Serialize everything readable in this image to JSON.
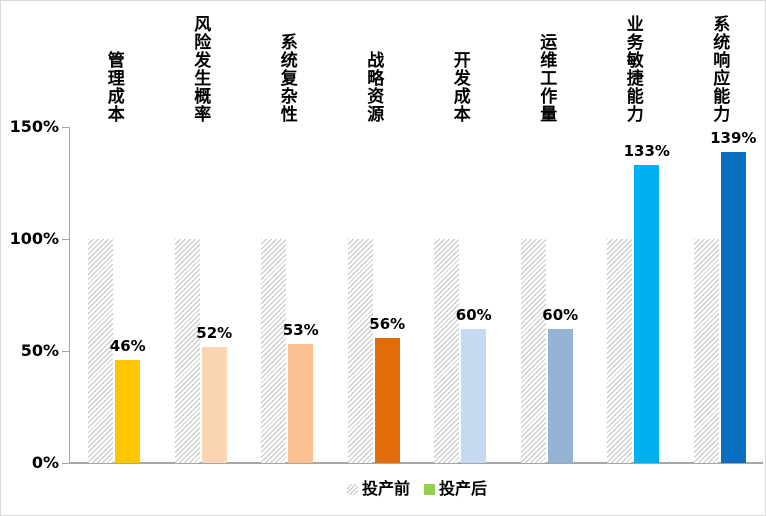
{
  "chart_data": {
    "type": "bar",
    "title": "",
    "categories": [
      "管理成本",
      "风险发生概率",
      "系统复杂性",
      "战略资源",
      "开发成本",
      "运维工作量",
      "业务敏捷能力",
      "系统响应能力"
    ],
    "series": [
      {
        "name": "投产前",
        "values": [
          100,
          100,
          100,
          100,
          100,
          100,
          100,
          100
        ],
        "style": "hatched",
        "hatch_color": "#c3c3c3",
        "legend_color": "#c3c3c3"
      },
      {
        "name": "投产后",
        "values": [
          46,
          52,
          53,
          56,
          60,
          60,
          133,
          139
        ],
        "colors": [
          "#FFC600",
          "#FCD5B4",
          "#FAC090",
          "#E36C0A",
          "#C6D9F1",
          "#95B3D7",
          "#00B0F0",
          "#0B6FC1"
        ],
        "legend_color": "#92D050"
      }
    ],
    "value_labels": [
      "46%",
      "52%",
      "53%",
      "56%",
      "60%",
      "60%",
      "133%",
      "139%"
    ],
    "yticks": [
      {
        "label": "150%",
        "value": 150
      },
      {
        "label": "100%",
        "value": 100
      },
      {
        "label": "50%",
        "value": 50
      },
      {
        "label": "0%",
        "value": 0
      }
    ],
    "ylim": [
      0,
      150
    ],
    "xlabel": "",
    "ylabel": "",
    "grid": false,
    "legend_position": "bottom",
    "axis_color": "#a6a6a6"
  }
}
